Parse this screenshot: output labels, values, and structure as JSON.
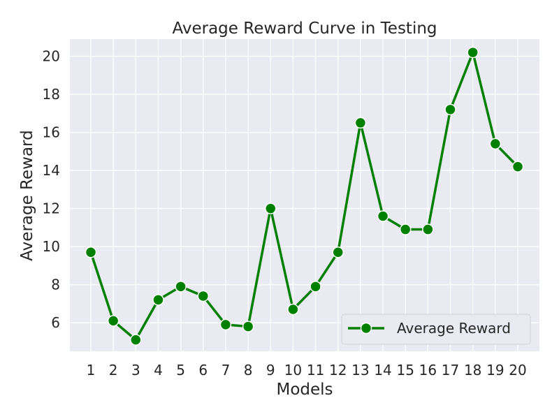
{
  "chart_data": {
    "type": "line",
    "title": "Average Reward Curve in Testing",
    "xlabel": "Models",
    "ylabel": "Average Reward",
    "categories": [
      "1",
      "2",
      "3",
      "4",
      "5",
      "6",
      "7",
      "8",
      "9",
      "10",
      "11",
      "12",
      "13",
      "14",
      "15",
      "16",
      "17",
      "18",
      "19",
      "20"
    ],
    "series": [
      {
        "name": "Average Reward",
        "color": "#008000",
        "values": [
          9.7,
          6.1,
          5.1,
          7.2,
          7.9,
          7.4,
          5.9,
          5.8,
          12.0,
          6.7,
          7.9,
          9.7,
          16.5,
          11.6,
          10.9,
          10.9,
          17.2,
          20.2,
          15.4,
          14.2
        ]
      }
    ],
    "ylim": [
      4.5,
      20.9
    ],
    "yticks": [
      6,
      8,
      10,
      12,
      14,
      16,
      18,
      20
    ],
    "grid": true,
    "legend_position": "lower-right",
    "background": "#eaeaf2"
  }
}
